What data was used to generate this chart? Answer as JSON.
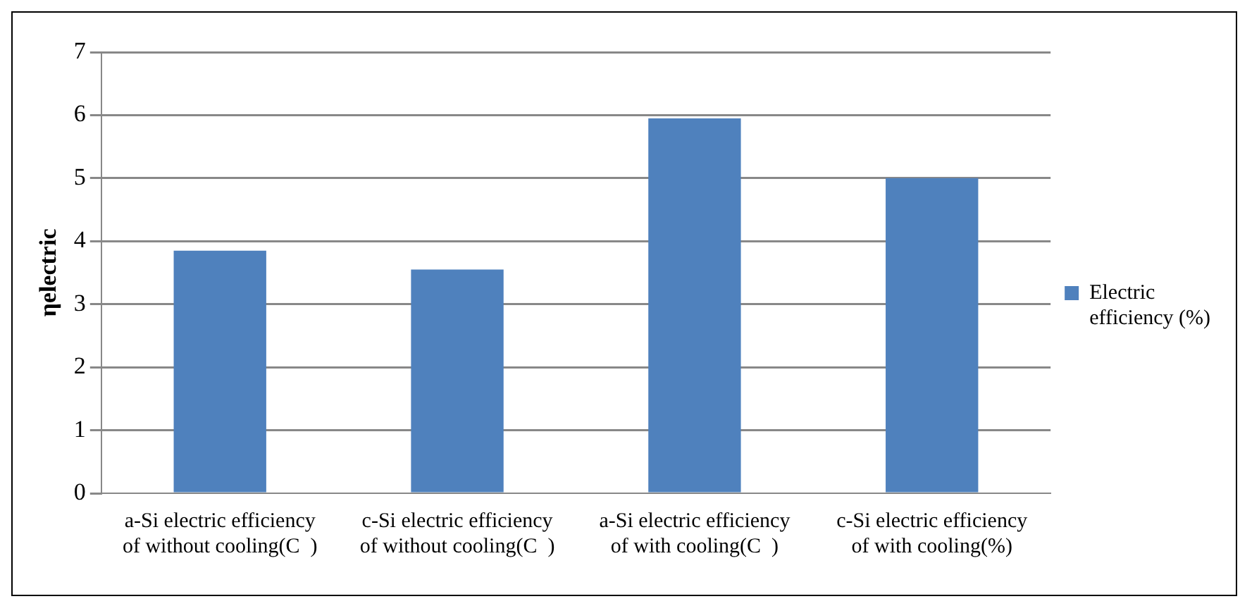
{
  "chart_data": {
    "type": "bar",
    "ylabel": "ηelectric",
    "categories": [
      "a-Si electric efficiency of without cooling(C  )",
      "c-Si electric efficiency of without cooling(C  )",
      "a-Si electric efficiency of with cooling(C  )",
      "c-Si electric efficiency of with cooling(%)"
    ],
    "series": [
      {
        "name": "Electric efficiency (%)",
        "color": "#4f81bd",
        "values": [
          3.85,
          3.55,
          5.95,
          5.0
        ]
      }
    ],
    "ylim": [
      0,
      7
    ],
    "yticks": [
      0,
      1,
      2,
      3,
      4,
      5,
      6,
      7
    ],
    "grid": "y",
    "legend": "right"
  }
}
